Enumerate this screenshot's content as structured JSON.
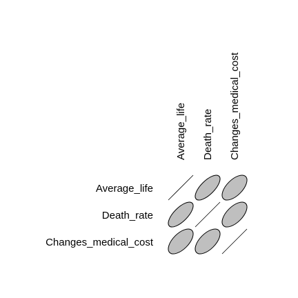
{
  "chart_data": {
    "type": "heatmap",
    "variables": [
      "Average_life",
      "Death_rate",
      "Changes_medical_cost"
    ],
    "correlation_matrix": [
      [
        1.0,
        0.7,
        0.6
      ],
      [
        0.7,
        1.0,
        0.6
      ],
      [
        0.6,
        0.6,
        1.0
      ]
    ],
    "colors": {
      "fill": "#bfbfbf",
      "stroke": "#000000",
      "diagonal": "#000000"
    }
  }
}
